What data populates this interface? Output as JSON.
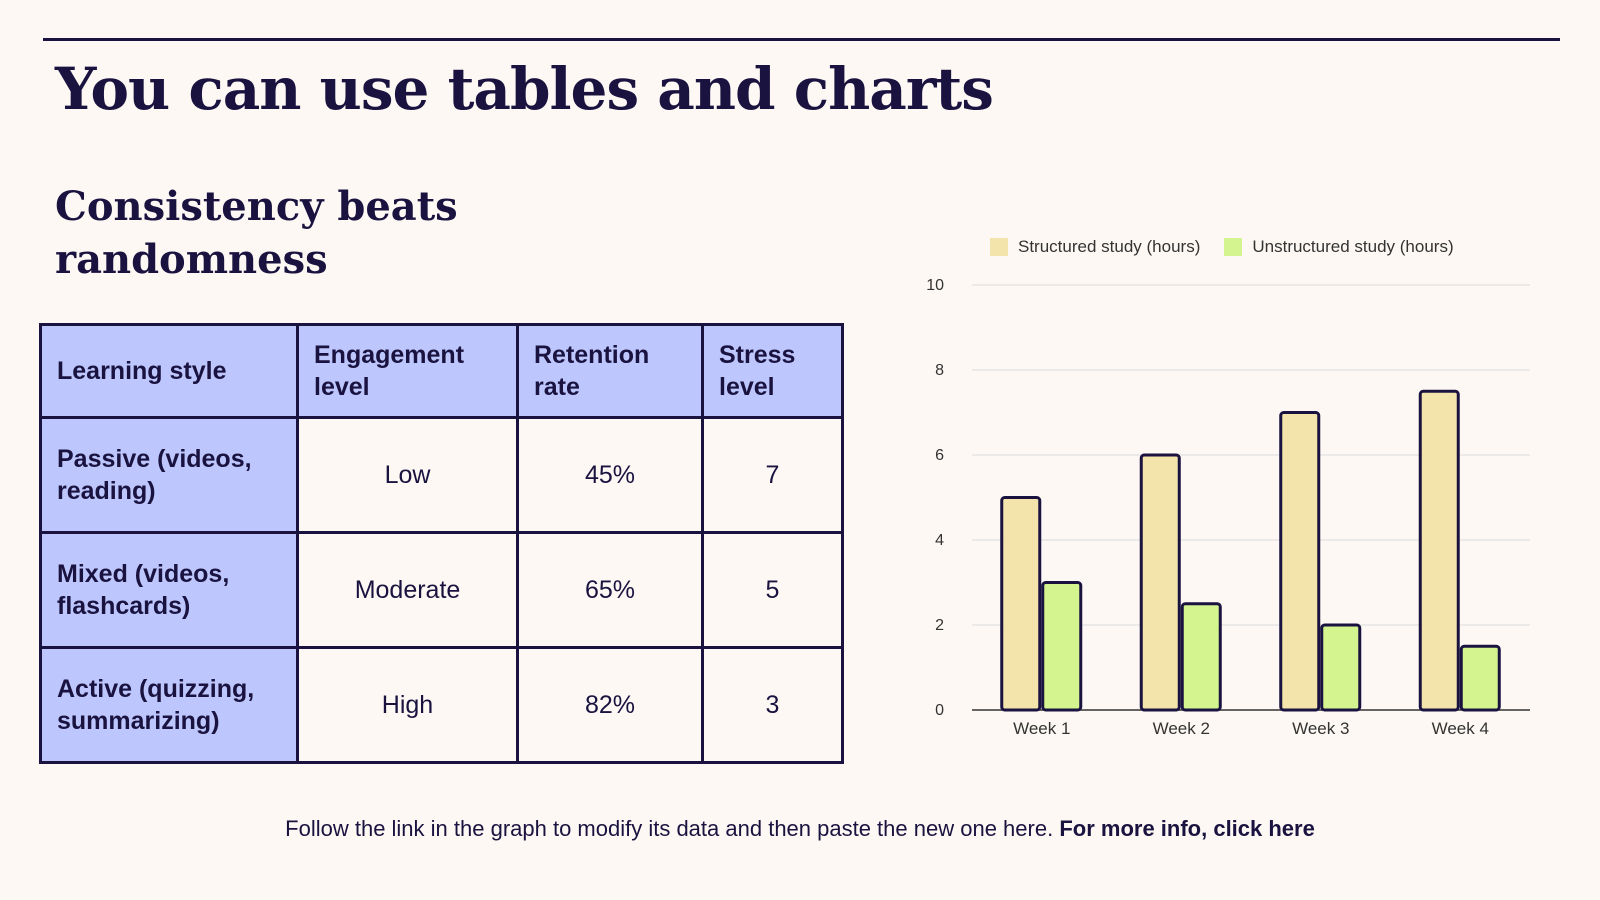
{
  "header": {
    "title": "You can use tables and charts"
  },
  "section": {
    "subtitle": "Consistency beats randomness"
  },
  "table": {
    "headers": [
      "Learning style",
      "Engagement level",
      "Retention rate",
      "Stress level"
    ],
    "rows": [
      {
        "style": "Passive (videos, reading)",
        "engagement": "Low",
        "retention": "45%",
        "stress": "7"
      },
      {
        "style": "Mixed (videos, flashcards)",
        "engagement": "Moderate",
        "retention": "65%",
        "stress": "5"
      },
      {
        "style": "Active (quizzing, summarizing)",
        "engagement": "High",
        "retention": "82%",
        "stress": "3"
      }
    ]
  },
  "colors": {
    "navy": "#1a1340",
    "header_fill": "#bdc7fd",
    "background": "#fdf8f3",
    "structured": "#f3e4ab",
    "unstructured": "#d4f48f",
    "grid": "#dcdcdc"
  },
  "chart_data": {
    "type": "bar",
    "categories": [
      "Week 1",
      "Week 2",
      "Week 3",
      "Week 4"
    ],
    "series": [
      {
        "name": "Structured study (hours)",
        "values": [
          5,
          6,
          7,
          7.5
        ]
      },
      {
        "name": "Unstructured study (hours)",
        "values": [
          3,
          2.5,
          2,
          1.5
        ]
      }
    ],
    "ylim": [
      0,
      10
    ],
    "yticks": [
      0,
      2,
      4,
      6,
      8,
      10
    ],
    "grid": true,
    "legend": "top"
  },
  "footer": {
    "text": "Follow the link in the graph to modify its data and then paste the new one here.",
    "link_label": "For more info, click here"
  }
}
